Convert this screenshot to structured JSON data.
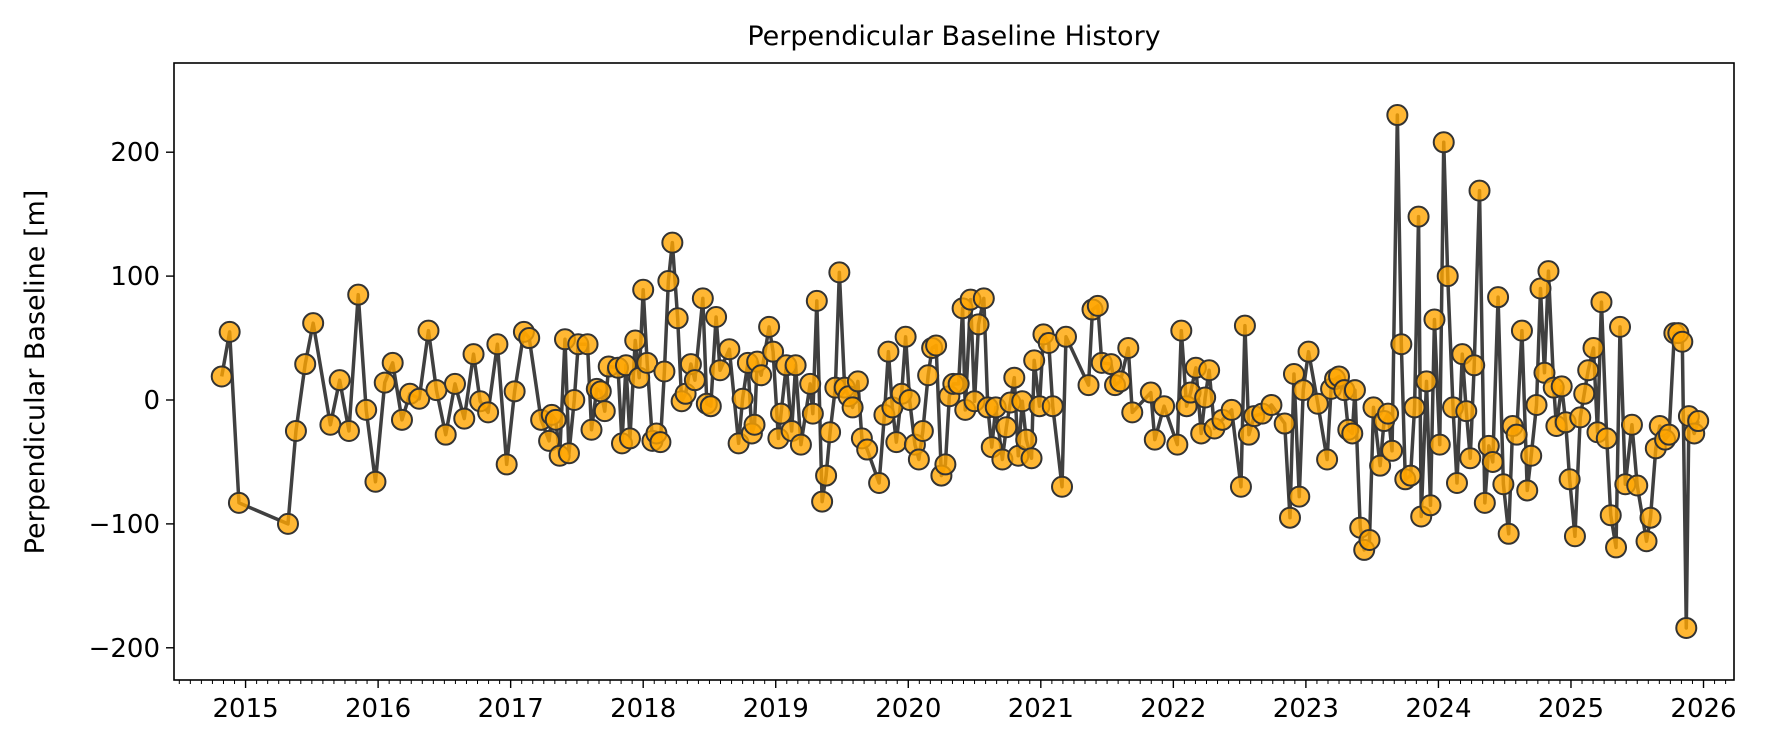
{
  "chart_data": {
    "type": "line",
    "title": "Perpendicular Baseline History",
    "xlabel": "",
    "ylabel": "Perpendicular Baseline [m]",
    "xlim": [
      2014.46,
      2026.23
    ],
    "ylim": [
      -226,
      272
    ],
    "xticks": [
      2015,
      2016,
      2017,
      2018,
      2019,
      2020,
      2021,
      2022,
      2023,
      2024,
      2025,
      2026
    ],
    "xtick_labels": [
      "2015",
      "2016",
      "2017",
      "2018",
      "2019",
      "2020",
      "2021",
      "2022",
      "2023",
      "2024",
      "2025",
      "2026"
    ],
    "yticks": [
      -200,
      -100,
      0,
      100,
      200
    ],
    "ytick_labels": [
      "−200",
      "−100",
      "0",
      "100",
      "200"
    ],
    "grid": false,
    "colors": {
      "line": "#404040",
      "marker_fill": "#ffa500",
      "marker_edge": "#333333"
    },
    "series": [
      {
        "name": "baseline",
        "x": [
          2014.82,
          2014.88,
          2014.95,
          2015.32,
          2015.38,
          2015.45,
          2015.51,
          2015.64,
          2015.71,
          2015.78,
          2015.85,
          2015.91,
          2015.98,
          2016.05,
          2016.11,
          2016.18,
          2016.24,
          2016.31,
          2016.38,
          2016.44,
          2016.51,
          2016.58,
          2016.65,
          2016.72,
          2016.77,
          2016.83,
          2016.9,
          2016.97,
          2017.03,
          2017.1,
          2017.14,
          2017.23,
          2017.29,
          2017.31,
          2017.34,
          2017.37,
          2017.41,
          2017.44,
          2017.48,
          2017.51,
          2017.58,
          2017.61,
          2017.65,
          2017.68,
          2017.71,
          2017.74,
          2017.81,
          2017.84,
          2017.87,
          2017.9,
          2017.94,
          2017.97,
          2018.0,
          2018.03,
          2018.07,
          2018.1,
          2018.13,
          2018.16,
          2018.19,
          2018.22,
          2018.26,
          2018.29,
          2018.32,
          2018.36,
          2018.39,
          2018.45,
          2018.48,
          2018.51,
          2018.55,
          2018.58,
          2018.65,
          2018.72,
          2018.75,
          2018.79,
          2018.82,
          2018.84,
          2018.86,
          2018.89,
          2018.95,
          2018.98,
          2019.02,
          2019.04,
          2019.08,
          2019.12,
          2019.15,
          2019.19,
          2019.26,
          2019.28,
          2019.31,
          2019.35,
          2019.38,
          2019.41,
          2019.45,
          2019.48,
          2019.52,
          2019.55,
          2019.58,
          2019.62,
          2019.65,
          2019.69,
          2019.78,
          2019.82,
          2019.85,
          2019.88,
          2019.91,
          2019.95,
          2019.98,
          2020.01,
          2020.05,
          2020.08,
          2020.11,
          2020.15,
          2020.18,
          2020.21,
          2020.25,
          2020.28,
          2020.31,
          2020.34,
          2020.38,
          2020.41,
          2020.43,
          2020.47,
          2020.5,
          2020.53,
          2020.57,
          2020.6,
          2020.63,
          2020.66,
          2020.71,
          2020.74,
          2020.77,
          2020.8,
          2020.83,
          2020.86,
          2020.89,
          2020.93,
          2020.95,
          2020.99,
          2021.02,
          2021.06,
          2021.09,
          2021.16,
          2021.19,
          2021.36,
          2021.39,
          2021.43,
          2021.46,
          2021.53,
          2021.56,
          2021.6,
          2021.66,
          2021.69,
          2021.83,
          2021.86,
          2021.93,
          2022.03,
          2022.06,
          2022.1,
          2022.13,
          2022.17,
          2022.21,
          2022.24,
          2022.27,
          2022.31,
          2022.37,
          2022.44,
          2022.51,
          2022.54,
          2022.57,
          2022.61,
          2022.67,
          2022.74,
          2022.84,
          2022.88,
          2022.91,
          2022.95,
          2022.98,
          2023.02,
          2023.09,
          2023.16,
          2023.19,
          2023.22,
          2023.25,
          2023.29,
          2023.32,
          2023.35,
          2023.37,
          2023.41,
          2023.44,
          2023.48,
          2023.51,
          2023.56,
          2023.59,
          2023.62,
          2023.65,
          2023.69,
          2023.72,
          2023.75,
          2023.79,
          2023.82,
          2023.85,
          2023.87,
          2023.91,
          2023.94,
          2023.97,
          2024.01,
          2024.04,
          2024.07,
          2024.11,
          2024.14,
          2024.18,
          2024.21,
          2024.24,
          2024.27,
          2024.31,
          2024.35,
          2024.38,
          2024.41,
          2024.45,
          2024.49,
          2024.53,
          2024.56,
          2024.59,
          2024.63,
          2024.67,
          2024.7,
          2024.74,
          2024.77,
          2024.8,
          2024.83,
          2024.87,
          2024.89,
          2024.93,
          2024.96,
          2024.99,
          2025.03,
          2025.07,
          2025.1,
          2025.13,
          2025.17,
          2025.2,
          2025.23,
          2025.27,
          2025.3,
          2025.34,
          2025.37,
          2025.41,
          2025.46,
          2025.5,
          2025.57,
          2025.6,
          2025.64,
          2025.67,
          2025.71,
          2025.74,
          2025.78,
          2025.81,
          2025.84,
          2025.87,
          2025.89,
          2025.93,
          2025.96
        ],
        "y": [
          19,
          55,
          -83,
          -100,
          -25,
          29,
          62,
          -20,
          16,
          -25,
          85,
          -8,
          -66,
          14,
          30,
          -16,
          5,
          1,
          56,
          8,
          -28,
          13,
          -15,
          37,
          -1,
          -10,
          45,
          -52,
          7,
          55,
          50,
          -16,
          -33,
          -12,
          -16,
          -45,
          49,
          -43,
          0,
          45,
          45,
          -24,
          9,
          7,
          -9,
          27,
          26,
          -35,
          28,
          -31,
          48,
          18,
          89,
          30,
          -33,
          -27,
          -34,
          23,
          96,
          127,
          66,
          -1,
          5,
          29,
          16,
          82,
          -3,
          -5,
          67,
          24,
          41,
          -35,
          1,
          30,
          -27,
          -20,
          31,
          20,
          59,
          39,
          -31,
          -11,
          28,
          -25,
          28,
          -36,
          13,
          -11,
          80,
          -82,
          -61,
          -26,
          10,
          103,
          10,
          3,
          -6,
          15,
          -31,
          -40,
          -67,
          -12,
          39,
          -6,
          -34,
          5,
          51,
          0,
          -36,
          -48,
          -25,
          20,
          42,
          44,
          -61,
          -52,
          3,
          13,
          13,
          74,
          -8,
          81,
          -1,
          61,
          82,
          -6,
          -38,
          -6,
          -48,
          -22,
          -2,
          18,
          -45,
          -1,
          -32,
          -47,
          32,
          -5,
          53,
          46,
          -5,
          -70,
          51,
          12,
          73,
          76,
          30,
          29,
          12,
          15,
          42,
          -10,
          6,
          -32,
          -5,
          -36,
          56,
          -5,
          6,
          26,
          -27,
          2,
          24,
          -23,
          -16,
          -8,
          -70,
          60,
          -28,
          -13,
          -11,
          -4,
          -19,
          -95,
          21,
          -78,
          8,
          39,
          -3,
          -48,
          9,
          17,
          19,
          8,
          -24,
          -27,
          8,
          -103,
          -121,
          -113,
          -6,
          -53,
          -17,
          -11,
          -41,
          230,
          45,
          -64,
          -61,
          -6,
          148,
          -94,
          15,
          -85,
          65,
          -36,
          208,
          100,
          -6,
          -67,
          37,
          -9,
          -47,
          28,
          169,
          -83,
          -37,
          -50,
          83,
          -68,
          -108,
          -21,
          -28,
          56,
          -73,
          -45,
          -4,
          90,
          22,
          104,
          10,
          -21,
          11,
          -18,
          -64,
          -110,
          -14,
          5,
          24,
          42,
          -26,
          79,
          -31,
          -93,
          -119,
          59,
          -68,
          -20,
          -69,
          -114,
          -95,
          -39,
          -21,
          -32,
          -28,
          54,
          54,
          47,
          -184,
          -13,
          -27,
          -17
        ]
      }
    ]
  }
}
